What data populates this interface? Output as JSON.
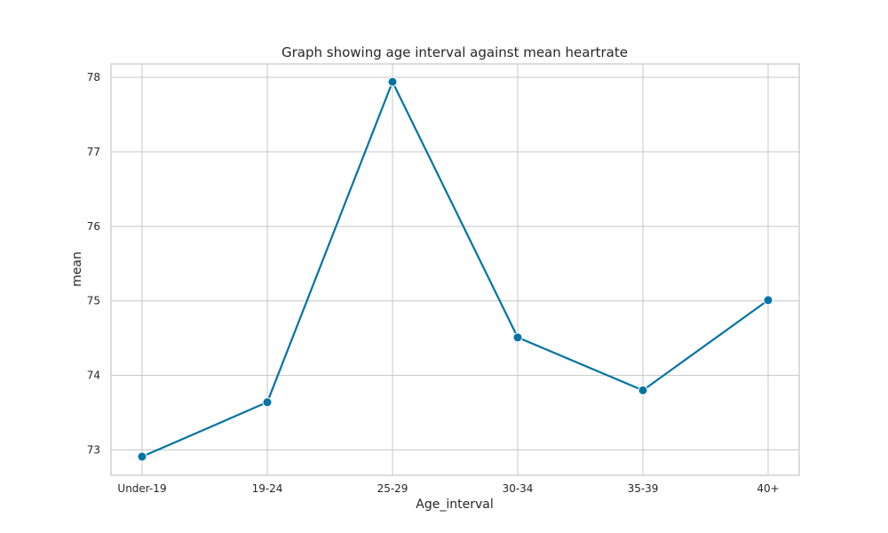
{
  "chart_data": {
    "type": "line",
    "title": "Graph showing age interval against mean heartrate",
    "xlabel": "Age_interval",
    "ylabel": "mean",
    "categories": [
      "Under-19",
      "19-24",
      "25-29",
      "30-34",
      "35-39",
      "40+"
    ],
    "values": [
      72.91,
      73.64,
      77.94,
      74.51,
      73.8,
      75.01
    ],
    "yticks": [
      "73",
      "74",
      "75",
      "76",
      "77",
      "78"
    ],
    "ylim": [
      72.66,
      78.18
    ],
    "grid": true,
    "marker": "circle",
    "colors": {
      "line": "#0173a4",
      "grid": "#cccccc",
      "frame": "#cccccc"
    }
  }
}
